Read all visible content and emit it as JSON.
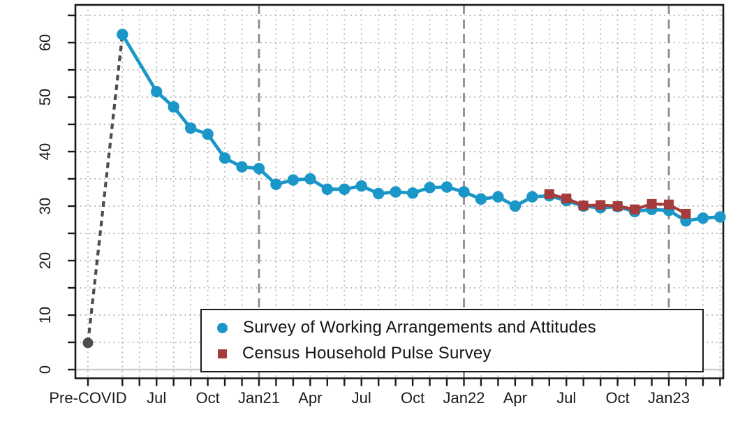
{
  "colors": {
    "swaa_blue": "#1a96c8",
    "census_red": "#a63b3b",
    "precovid_gray": "#4d4d4d",
    "grid_dotted": "#b0b0b0",
    "year_divider": "#8c8c8c",
    "zero_line": "#cdcdcd",
    "axis": "#1a1a1a"
  },
  "chart_data": {
    "type": "line",
    "title": "",
    "xlabel": "",
    "ylabel": "",
    "ylim": [
      0,
      65
    ],
    "y_major_tick_labels": [
      "0",
      "10",
      "20",
      "30",
      "40",
      "50",
      "60"
    ],
    "y_major_tick_values": [
      0,
      10,
      20,
      30,
      40,
      50,
      60
    ],
    "y_minor_tick_step": 5,
    "grid": "dotted horizontal every 5 units, dotted vertical every month",
    "x_axis_ticks": [
      {
        "label": "Pre-COVID",
        "month": "Pre-COVID"
      },
      {
        "label": "Jul",
        "month": "Jul20"
      },
      {
        "label": "Oct",
        "month": "Oct20"
      },
      {
        "label": "Jan21",
        "month": "Jan21"
      },
      {
        "label": "Apr",
        "month": "Apr21"
      },
      {
        "label": "Jul",
        "month": "Jul21"
      },
      {
        "label": "Oct",
        "month": "Oct21"
      },
      {
        "label": "Jan22",
        "month": "Jan22"
      },
      {
        "label": "Apr",
        "month": "Apr22"
      },
      {
        "label": "Jul",
        "month": "Jul22"
      },
      {
        "label": "Oct",
        "month": "Oct22"
      },
      {
        "label": "Jan23",
        "month": "Jan23"
      }
    ],
    "year_divider_months": [
      "Jan21",
      "Jan22",
      "Jan23"
    ],
    "baseline_connector": {
      "style": "dashed gray line with filled gray dot at Pre-COVID",
      "points": [
        {
          "month": "Pre-COVID",
          "value": 4.9
        },
        {
          "month": "May20",
          "value": 61.5
        }
      ]
    },
    "series": [
      {
        "name": "Survey of Working Arrangements and Attitudes",
        "marker": "circle",
        "color_key": "swaa_blue",
        "months": [
          "May20",
          "Jul20",
          "Aug20",
          "Sep20",
          "Oct20",
          "Nov20",
          "Dec20",
          "Jan21",
          "Feb21",
          "Mar21",
          "Apr21",
          "May21",
          "Jun21",
          "Jul21",
          "Aug21",
          "Sep21",
          "Oct21",
          "Nov21",
          "Dec21",
          "Jan22",
          "Feb22",
          "Mar22",
          "Apr22",
          "May22",
          "Jun22",
          "Jul22",
          "Aug22",
          "Sep22",
          "Oct22",
          "Nov22",
          "Dec22",
          "Jan23",
          "Feb23",
          "Mar23",
          "Apr23"
        ],
        "values": [
          61.5,
          51.0,
          48.2,
          44.3,
          43.2,
          38.8,
          37.2,
          36.9,
          34.0,
          34.8,
          35.0,
          33.1,
          33.1,
          33.7,
          32.3,
          32.6,
          32.4,
          33.4,
          33.5,
          32.6,
          31.3,
          31.7,
          30.0,
          31.7,
          31.9,
          31.0,
          30.0,
          29.7,
          29.9,
          29.0,
          29.4,
          29.2,
          27.3,
          27.8,
          28.0
        ]
      },
      {
        "name": "Census Household Pulse Survey",
        "marker": "square",
        "color_key": "census_red",
        "months": [
          "Jun22",
          "Jul22",
          "Aug22",
          "Sep22",
          "Oct22",
          "Nov22",
          "Dec22",
          "Jan23",
          "Feb23"
        ],
        "values": [
          32.2,
          31.4,
          30.1,
          30.2,
          30.0,
          29.4,
          30.4,
          30.3,
          28.6
        ]
      }
    ],
    "legend": {
      "position": "bottom-right-inside",
      "items": [
        "Survey of Working Arrangements and Attitudes",
        "Census Household Pulse Survey"
      ]
    }
  }
}
